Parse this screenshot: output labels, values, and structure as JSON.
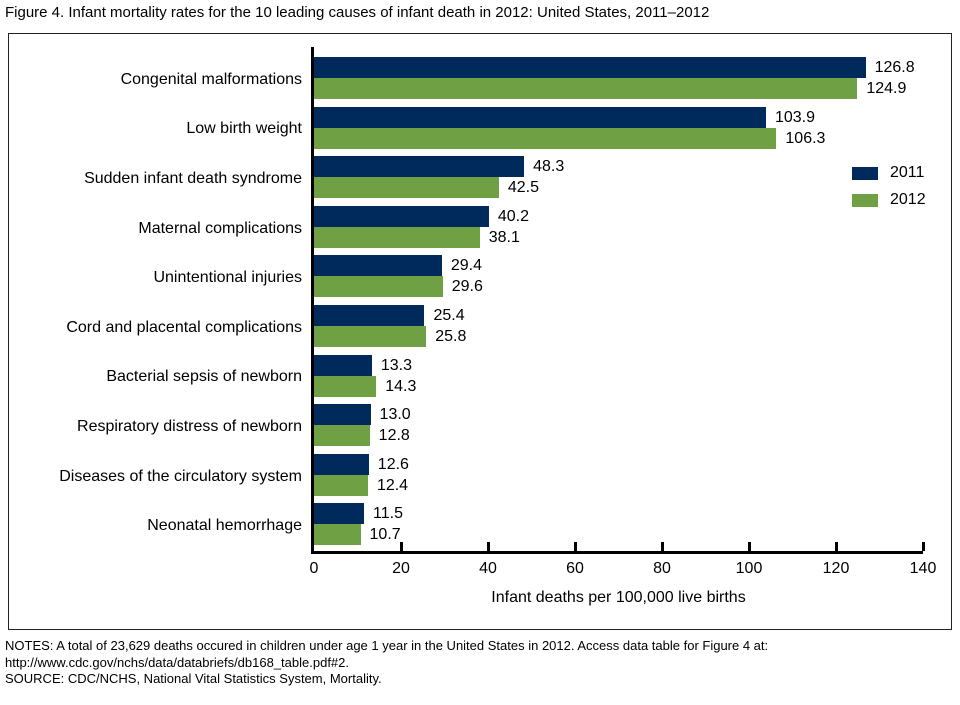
{
  "figure_title": "Figure 4. Infant mortality rates for the 10 leading causes of infant death in 2012: United States, 2011–2012",
  "chart_data": {
    "type": "bar",
    "orientation": "horizontal",
    "title": "Figure 4. Infant mortality rates for the 10 leading causes of infant death in 2012: United States, 2011–2012",
    "categories": [
      "Congenital malformations",
      "Low birth weight",
      "Sudden infant death syndrome",
      "Maternal complications",
      "Unintentional injuries",
      "Cord and placental complications",
      "Bacterial sepsis of newborn",
      "Respiratory distress of newborn",
      "Diseases of the circulatory system",
      "Neonatal hemorrhage"
    ],
    "series": [
      {
        "name": "2011",
        "color": "#002a5c",
        "values": [
          126.8,
          103.9,
          48.3,
          40.2,
          29.4,
          25.4,
          13.3,
          13.0,
          12.6,
          11.5
        ]
      },
      {
        "name": "2012",
        "color": "#6fa044",
        "values": [
          124.9,
          106.3,
          42.5,
          38.1,
          29.6,
          25.8,
          14.3,
          12.8,
          12.4,
          10.7
        ]
      }
    ],
    "xlabel": "Infant deaths per 100,000 live births",
    "xlim": [
      0,
      140
    ],
    "xticks": [
      0,
      20,
      40,
      60,
      80,
      100,
      120,
      140
    ],
    "grid": false,
    "value_labels": true,
    "legend_position": "right-upper-middle"
  },
  "notes": {
    "line1": "NOTES: A total of 23,629 deaths occured in children under age 1 year in the United States in 2012. Access data table for Figure 4 at:",
    "line2": "http://www.cdc.gov/nchs/data/databriefs/db168_table.pdf#2.",
    "line3": "SOURCE: CDC/NCHS, National Vital Statistics System, Mortality."
  }
}
